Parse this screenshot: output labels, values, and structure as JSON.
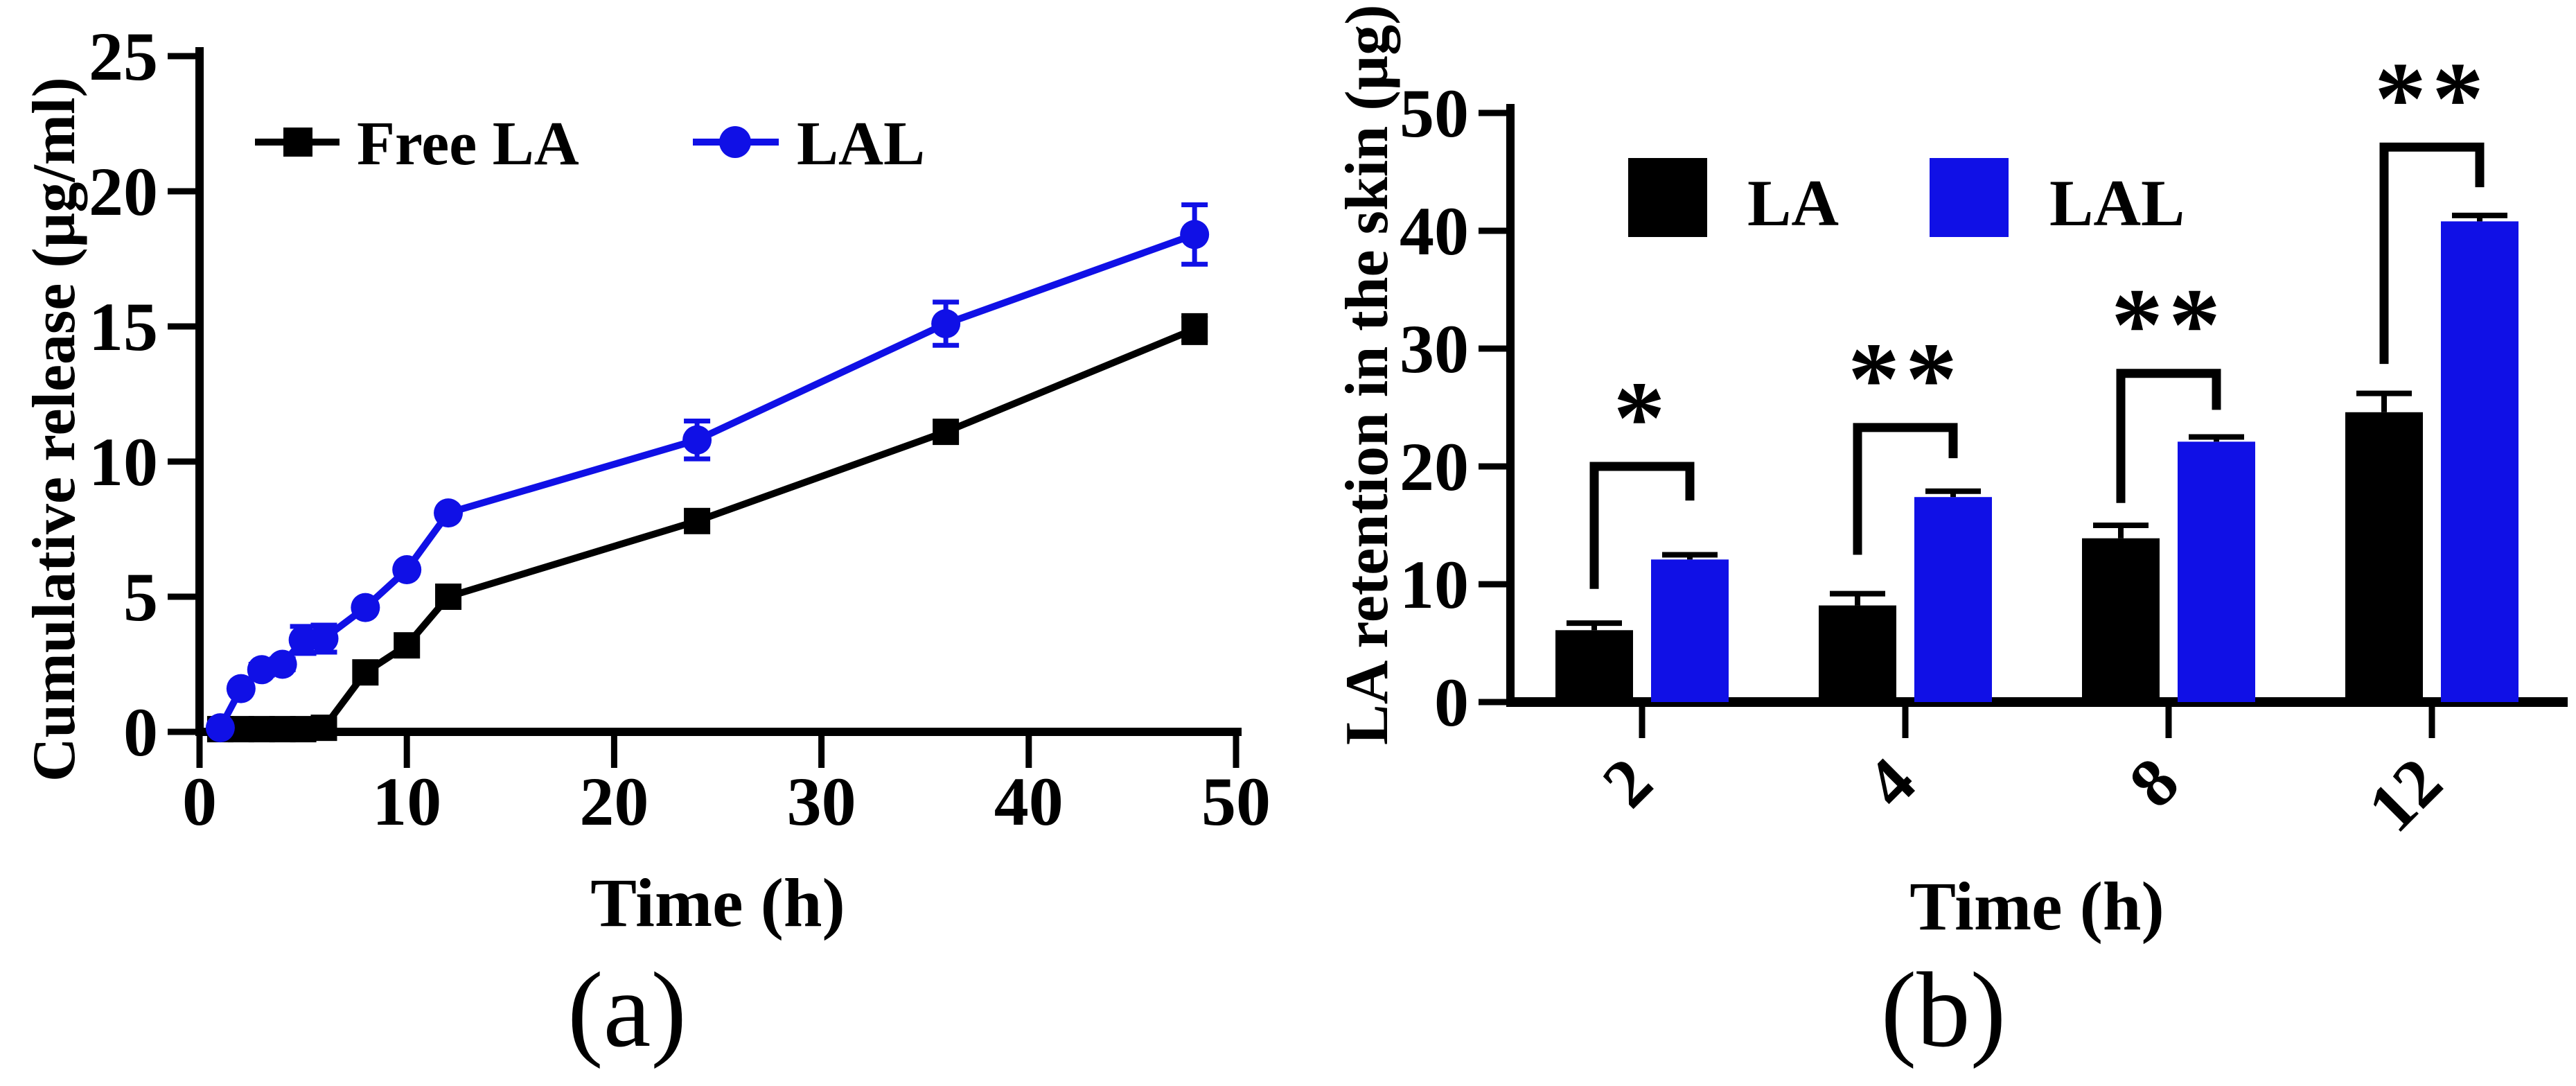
{
  "panel_a": {
    "caption": "(a)",
    "xlabel": "Time (h)",
    "ylabel": "Cumulative release (µg/ml)",
    "legend": [
      "Free LA",
      "LAL"
    ]
  },
  "panel_b": {
    "caption": "(b)",
    "xlabel": "Time (h)",
    "ylabel": "LA retention in the skin (µg)",
    "legend": [
      "LA",
      "LAL"
    ]
  },
  "colors": {
    "black": "#000000",
    "blue": "#1010e6"
  },
  "chart_data": [
    {
      "panel": "a",
      "type": "line",
      "title": "",
      "xlabel": "Time (h)",
      "ylabel": "Cumulative release (µg/ml)",
      "xlim": [
        0,
        50
      ],
      "ylim": [
        0,
        25
      ],
      "xticks": [
        0,
        10,
        20,
        30,
        40,
        50
      ],
      "yticks": [
        0,
        5,
        10,
        15,
        20,
        25
      ],
      "grid": false,
      "legend_position": "inside-top-left",
      "series": [
        {
          "name": "Free LA",
          "color": "#000000",
          "marker": "square",
          "x": [
            1,
            2,
            3,
            4,
            5,
            6,
            8,
            10,
            12,
            24,
            36,
            48
          ],
          "y": [
            0.1,
            0.1,
            0.1,
            0.1,
            0.1,
            0.15,
            2.2,
            3.2,
            5.0,
            7.8,
            11.1,
            14.9
          ],
          "yerr": [
            0,
            0,
            0,
            0,
            0,
            0,
            0,
            0,
            0,
            0,
            0,
            0.5
          ]
        },
        {
          "name": "LAL",
          "color": "#1010e6",
          "marker": "circle",
          "x": [
            1,
            2,
            3,
            4,
            5,
            6,
            8,
            10,
            12,
            24,
            36,
            48
          ],
          "y": [
            0.15,
            1.6,
            2.3,
            2.5,
            3.4,
            3.45,
            4.6,
            6.0,
            8.1,
            10.8,
            15.1,
            18.4
          ],
          "yerr": [
            0,
            0,
            0.2,
            0.2,
            0.5,
            0.5,
            0,
            0,
            0,
            0.7,
            0.8,
            1.1
          ]
        }
      ]
    },
    {
      "panel": "b",
      "type": "bar",
      "title": "",
      "xlabel": "Time (h)",
      "ylabel": "LA retention in the skin (µg)",
      "ylim": [
        0,
        50
      ],
      "yticks": [
        0,
        10,
        20,
        30,
        40,
        50
      ],
      "grid": false,
      "legend_position": "top",
      "categories": [
        "2",
        "4",
        "8",
        "12"
      ],
      "series": [
        {
          "name": "LA",
          "color": "#000000",
          "values": [
            6.1,
            8.2,
            13.9,
            24.6
          ],
          "errors": [
            0.6,
            1.0,
            1.1,
            1.6
          ]
        },
        {
          "name": "LAL",
          "color": "#1010e6",
          "values": [
            12.1,
            17.4,
            22.1,
            40.8
          ],
          "errors": [
            0.4,
            0.5,
            0.4,
            0.5
          ]
        }
      ],
      "significance": [
        {
          "category": "2",
          "label": "*",
          "bar_y": 20.0,
          "left_leg_bottom": 9.6,
          "right_leg_bottom": 17.1
        },
        {
          "category": "4",
          "label": "**",
          "bar_y": 23.3,
          "left_leg_bottom": 12.5,
          "right_leg_bottom": 20.7
        },
        {
          "category": "8",
          "label": "**",
          "bar_y": 27.9,
          "left_leg_bottom": 16.9,
          "right_leg_bottom": 24.8
        },
        {
          "category": "12",
          "label": "**",
          "bar_y": 47.1,
          "left_leg_bottom": 28.7,
          "right_leg_bottom": 43.7
        }
      ]
    }
  ]
}
